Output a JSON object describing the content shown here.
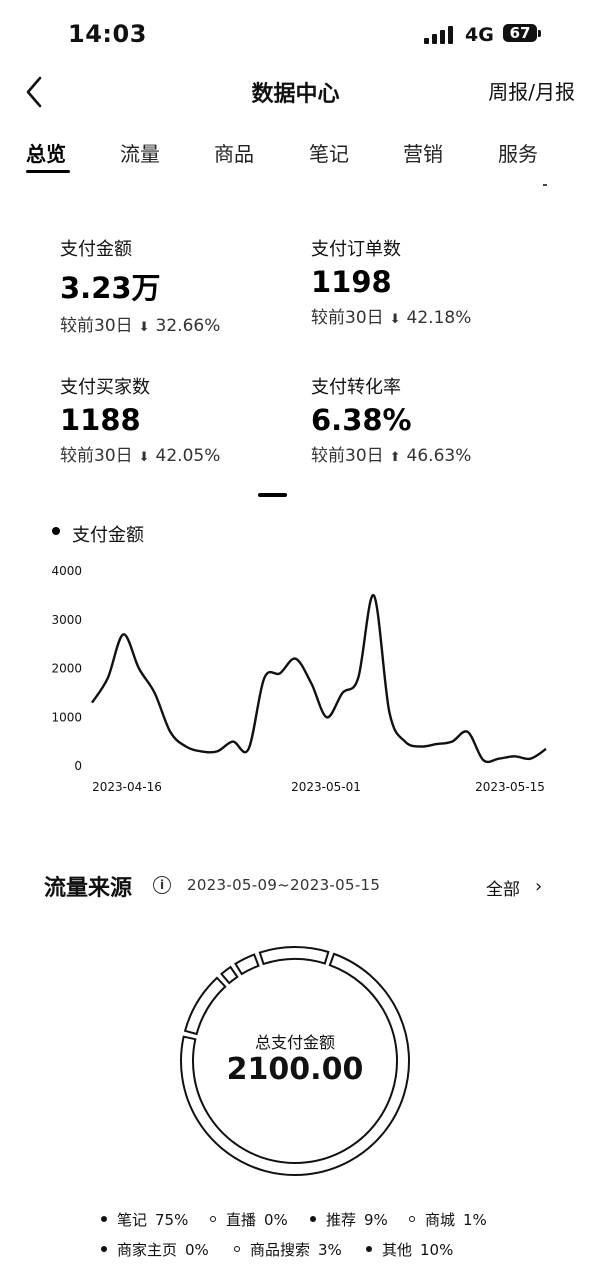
{
  "status_bar": {
    "time": "14:03",
    "network": "4G",
    "battery": "67"
  },
  "header": {
    "title": "数据中心",
    "period_toggle": "周报/月报"
  },
  "tabs": [
    {
      "label": "总览",
      "active": true
    },
    {
      "label": "流量",
      "active": false
    },
    {
      "label": "商品",
      "active": false
    },
    {
      "label": "笔记",
      "active": false
    },
    {
      "label": "营销",
      "active": false
    },
    {
      "label": "服务",
      "active": false
    }
  ],
  "metrics": [
    {
      "label": "支付金额",
      "value": "3.23万",
      "compare_prefix": "较前30日",
      "direction": "down",
      "arrow": "⬇",
      "change": "32.66%"
    },
    {
      "label": "支付订单数",
      "value": "1198",
      "compare_prefix": "较前30日",
      "direction": "down",
      "arrow": "⬇",
      "change": "42.18%"
    },
    {
      "label": "支付买家数",
      "value": "1188",
      "compare_prefix": "较前30日",
      "direction": "down",
      "arrow": "⬇",
      "change": "42.05%"
    },
    {
      "label": "支付转化率",
      "value": "6.38%",
      "compare_prefix": "较前30日",
      "direction": "up",
      "arrow": "⬆",
      "change": "46.63%"
    }
  ],
  "chart_data": {
    "type": "line",
    "series": [
      {
        "name": "支付金额",
        "values": [
          1300,
          1800,
          2700,
          2000,
          1500,
          700,
          400,
          300,
          300,
          500,
          350,
          1800,
          1900,
          2200,
          1700,
          1000,
          1500,
          1800,
          3500,
          1100,
          500,
          400,
          450,
          500,
          700,
          120,
          150,
          200,
          150,
          350
        ]
      },
      {
        "name": "",
        "values": []
      }
    ],
    "x_tick_labels": [
      "2023-04-16",
      "2023-05-01",
      "2023-05-15"
    ],
    "y_ticks": [
      "4000",
      "3000",
      "2000",
      "1000",
      "0"
    ],
    "ylim": [
      0,
      4000
    ],
    "grid": false,
    "legend": "top-left"
  },
  "traffic": {
    "title": "流量来源",
    "date_range": "2023-05-09~2023-05-15",
    "all_label": "全部",
    "total_label": "总支付金额",
    "total_value": "2100.00",
    "sources": [
      {
        "name": "笔记",
        "pct": "75%",
        "value": 75,
        "style": "filled"
      },
      {
        "name": "直播",
        "pct": "0%",
        "value": 0,
        "style": "hollow"
      },
      {
        "name": "推荐",
        "pct": "9%",
        "value": 9,
        "style": "filled"
      },
      {
        "name": "商城",
        "pct": "1%",
        "value": 1,
        "style": "hollow"
      },
      {
        "name": "商家主页",
        "pct": "0%",
        "value": 0,
        "style": "filled"
      },
      {
        "name": "商品搜索",
        "pct": "3%",
        "value": 3,
        "style": "hollow"
      },
      {
        "name": "其他",
        "pct": "10%",
        "value": 10,
        "style": "filled"
      }
    ]
  }
}
